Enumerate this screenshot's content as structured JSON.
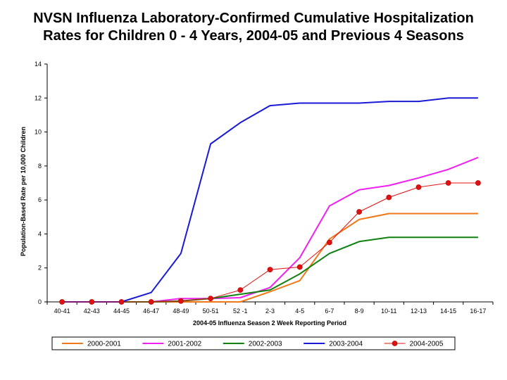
{
  "chart_data": {
    "type": "line",
    "title_line1": "NVSN Influenza Laboratory-Confirmed Cumulative Hospitalization",
    "title_line2": "Rates for Children 0 - 4 Years, 2004-05 and Previous 4 Seasons",
    "xlabel": "2004-05 Influenza Season 2 Week Reporting Period",
    "ylabel": "Population-Based Rate per 10,000 Children",
    "ylim": [
      0,
      14
    ],
    "yticks": [
      0,
      2,
      4,
      6,
      8,
      10,
      12,
      14
    ],
    "grid": false,
    "legend_position": "bottom",
    "categories": [
      "40-41",
      "42-43",
      "44-45",
      "46-47",
      "48-49",
      "50-51",
      "52 -1",
      "2-3",
      "4-5",
      "6-7",
      "8-9",
      "10-11",
      "12-13",
      "14-15",
      "16-17"
    ],
    "series": [
      {
        "name": "2000-2001",
        "color": "#f07818",
        "marker": "none",
        "values": [
          0,
          0,
          0,
          0,
          0,
          0,
          0,
          0.6,
          1.25,
          3.7,
          4.85,
          5.2,
          5.2,
          5.2,
          5.2
        ]
      },
      {
        "name": "2001-2002",
        "color": "#f020f0",
        "marker": "none",
        "values": [
          0,
          0,
          0,
          0,
          0.2,
          0.2,
          0.25,
          0.85,
          2.6,
          5.65,
          6.6,
          6.85,
          7.3,
          7.8,
          8.5
        ]
      },
      {
        "name": "2002-2003",
        "color": "#108010",
        "marker": "none",
        "values": [
          0,
          0,
          0,
          0,
          0.05,
          0.2,
          0.45,
          0.7,
          1.65,
          2.85,
          3.55,
          3.8,
          3.8,
          3.8,
          3.8
        ]
      },
      {
        "name": "2003-2004",
        "color": "#1a1ad6",
        "marker": "none",
        "values": [
          0,
          0,
          0,
          0.55,
          2.85,
          9.3,
          10.55,
          11.55,
          11.7,
          11.7,
          11.7,
          11.8,
          11.8,
          12.0,
          12.0
        ]
      },
      {
        "name": "2004-2005",
        "color": "#e01010",
        "marker": "circle",
        "values": [
          0,
          0,
          0,
          0,
          0.05,
          0.2,
          0.7,
          1.9,
          2.05,
          3.5,
          5.3,
          6.15,
          6.75,
          7.0,
          7.0
        ]
      }
    ]
  }
}
